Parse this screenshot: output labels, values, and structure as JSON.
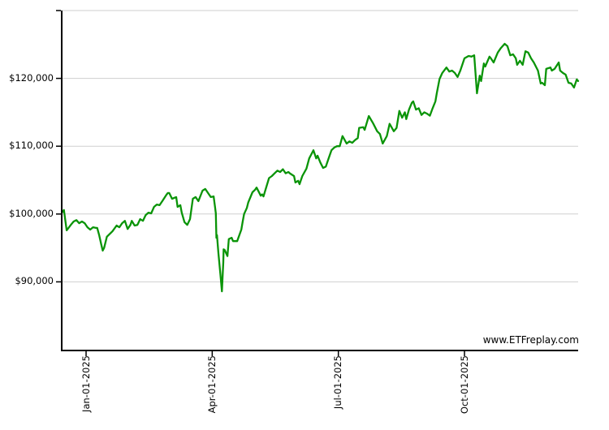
{
  "watermark": "www.ETFreplay.com",
  "colors": {
    "series_green": "#0a9408",
    "gridline_gray": "#cfcfcf",
    "axis_black": "#000000",
    "background": "#ffffff",
    "label_text": "#000000"
  },
  "chart_data": {
    "type": "line",
    "title": "",
    "xlabel": "",
    "ylabel": "",
    "grid": true,
    "legend_position": "none",
    "ylim": [
      80000,
      130000
    ],
    "x_range_days": [
      0,
      372
    ],
    "y_tick_labels": [
      {
        "label": "$90,000",
        "value": 90000
      },
      {
        "label": "$100,000",
        "value": 100000
      },
      {
        "label": "$110,000",
        "value": 110000
      },
      {
        "label": "$120,000",
        "value": 120000
      }
    ],
    "y_gridline_values": [
      90000,
      100000,
      110000,
      120000,
      130000
    ],
    "x_ticks": [
      {
        "label": "Jan-01-2025",
        "day": 17
      },
      {
        "label": "Apr-01-2025",
        "day": 108
      },
      {
        "label": "Jul-01-2025",
        "day": 199
      },
      {
        "label": "Oct-01-2025",
        "day": 290
      }
    ],
    "series": [
      {
        "name": "portfolio-value",
        "color": "#0a9408",
        "points": [
          [
            0,
            100300
          ],
          [
            1,
            100600
          ],
          [
            3,
            97600
          ],
          [
            6,
            98400
          ],
          [
            8,
            98900
          ],
          [
            10,
            99100
          ],
          [
            12,
            98650
          ],
          [
            14,
            98900
          ],
          [
            16,
            98650
          ],
          [
            18,
            98050
          ],
          [
            20,
            97700
          ],
          [
            22,
            98050
          ],
          [
            24,
            97950
          ],
          [
            25,
            97950
          ],
          [
            26.5,
            96850
          ],
          [
            28,
            95450
          ],
          [
            29,
            94600
          ],
          [
            30,
            95000
          ],
          [
            32,
            96650
          ],
          [
            35,
            97250
          ],
          [
            36,
            97450
          ],
          [
            39,
            98300
          ],
          [
            41,
            98050
          ],
          [
            43,
            98650
          ],
          [
            45,
            99000
          ],
          [
            47,
            97800
          ],
          [
            49,
            98400
          ],
          [
            50,
            99000
          ],
          [
            52,
            98300
          ],
          [
            54,
            98400
          ],
          [
            56,
            99250
          ],
          [
            58,
            99000
          ],
          [
            60,
            99850
          ],
          [
            62,
            100200
          ],
          [
            64,
            100100
          ],
          [
            66,
            101050
          ],
          [
            68,
            101400
          ],
          [
            70,
            101300
          ],
          [
            72,
            101900
          ],
          [
            75,
            102850
          ],
          [
            76,
            103100
          ],
          [
            77,
            103100
          ],
          [
            79,
            102250
          ],
          [
            82,
            102500
          ],
          [
            83,
            101050
          ],
          [
            85,
            101300
          ],
          [
            86,
            100200
          ],
          [
            88,
            98800
          ],
          [
            90,
            98400
          ],
          [
            92,
            99250
          ],
          [
            94,
            102250
          ],
          [
            96,
            102500
          ],
          [
            98,
            101900
          ],
          [
            101,
            103450
          ],
          [
            103,
            103700
          ],
          [
            105,
            103100
          ],
          [
            107,
            102500
          ],
          [
            109,
            102600
          ],
          [
            110,
            101050
          ],
          [
            110.6,
            100100
          ],
          [
            111,
            96500
          ],
          [
            111.4,
            96900
          ],
          [
            112.5,
            94200
          ],
          [
            114,
            90900
          ],
          [
            115,
            88600
          ],
          [
            115.7,
            91700
          ],
          [
            116,
            92900
          ],
          [
            116.2,
            94800
          ],
          [
            117,
            94700
          ],
          [
            119,
            93800
          ],
          [
            120,
            96300
          ],
          [
            122,
            96500
          ],
          [
            123,
            96000
          ],
          [
            126,
            96000
          ],
          [
            129,
            97700
          ],
          [
            130,
            98900
          ],
          [
            131,
            100000
          ],
          [
            133,
            100900
          ],
          [
            134,
            101700
          ],
          [
            137,
            103200
          ],
          [
            139,
            103600
          ],
          [
            140,
            103900
          ],
          [
            143,
            102700
          ],
          [
            144,
            102900
          ],
          [
            145,
            102600
          ],
          [
            149,
            105300
          ],
          [
            151,
            105600
          ],
          [
            153,
            106000
          ],
          [
            155,
            106400
          ],
          [
            157,
            106200
          ],
          [
            159,
            106600
          ],
          [
            161,
            106000
          ],
          [
            163,
            106200
          ],
          [
            164,
            106000
          ],
          [
            167,
            105600
          ],
          [
            168,
            104650
          ],
          [
            170,
            104900
          ],
          [
            171,
            104400
          ],
          [
            173,
            105600
          ],
          [
            176,
            106700
          ],
          [
            178,
            108200
          ],
          [
            181,
            109400
          ],
          [
            183,
            108200
          ],
          [
            184,
            108600
          ],
          [
            186,
            107600
          ],
          [
            188,
            106800
          ],
          [
            190,
            107000
          ],
          [
            192,
            108200
          ],
          [
            194,
            109400
          ],
          [
            196,
            109800
          ],
          [
            198,
            110000
          ],
          [
            200,
            110000
          ],
          [
            202,
            111500
          ],
          [
            205,
            110400
          ],
          [
            207,
            110700
          ],
          [
            209,
            110500
          ],
          [
            211,
            110900
          ],
          [
            213,
            111200
          ],
          [
            214,
            112700
          ],
          [
            217,
            112800
          ],
          [
            218,
            112400
          ],
          [
            221,
            114450
          ],
          [
            224,
            113400
          ],
          [
            227,
            112200
          ],
          [
            229,
            111800
          ],
          [
            231,
            110400
          ],
          [
            234,
            111500
          ],
          [
            236,
            113300
          ],
          [
            239,
            112200
          ],
          [
            241,
            112700
          ],
          [
            243,
            115200
          ],
          [
            245,
            114200
          ],
          [
            247,
            115000
          ],
          [
            248,
            114000
          ],
          [
            250,
            115400
          ],
          [
            252,
            116400
          ],
          [
            253,
            116600
          ],
          [
            255,
            115400
          ],
          [
            257,
            115600
          ],
          [
            259,
            114600
          ],
          [
            261,
            115000
          ],
          [
            263,
            114800
          ],
          [
            265,
            114500
          ],
          [
            267,
            115600
          ],
          [
            269,
            116600
          ],
          [
            270,
            117800
          ],
          [
            272,
            119900
          ],
          [
            274,
            120800
          ],
          [
            277,
            121600
          ],
          [
            279,
            121000
          ],
          [
            281,
            121150
          ],
          [
            283,
            120800
          ],
          [
            285,
            120200
          ],
          [
            287,
            121150
          ],
          [
            290,
            122950
          ],
          [
            293,
            123300
          ],
          [
            295,
            123200
          ],
          [
            297,
            123400
          ],
          [
            299,
            117800
          ],
          [
            301,
            120400
          ],
          [
            302,
            119600
          ],
          [
            304,
            122200
          ],
          [
            305,
            121750
          ],
          [
            308,
            123200
          ],
          [
            309,
            122950
          ],
          [
            311,
            122350
          ],
          [
            314,
            123800
          ],
          [
            316,
            124400
          ],
          [
            319,
            125100
          ],
          [
            321,
            124750
          ],
          [
            323,
            123400
          ],
          [
            325,
            123550
          ],
          [
            327,
            122950
          ],
          [
            328,
            122000
          ],
          [
            330,
            122600
          ],
          [
            332,
            122000
          ],
          [
            334,
            124000
          ],
          [
            336,
            123800
          ],
          [
            338,
            122950
          ],
          [
            340,
            122350
          ],
          [
            343,
            121150
          ],
          [
            345,
            119250
          ],
          [
            346,
            119350
          ],
          [
            348,
            119000
          ],
          [
            349,
            121400
          ],
          [
            352,
            121600
          ],
          [
            353,
            121150
          ],
          [
            355,
            121400
          ],
          [
            358,
            122350
          ],
          [
            359,
            121150
          ],
          [
            361,
            120800
          ],
          [
            363,
            120550
          ],
          [
            365,
            119350
          ],
          [
            367,
            119250
          ],
          [
            369,
            118650
          ],
          [
            371,
            119850
          ],
          [
            372,
            119600
          ]
        ]
      }
    ]
  }
}
